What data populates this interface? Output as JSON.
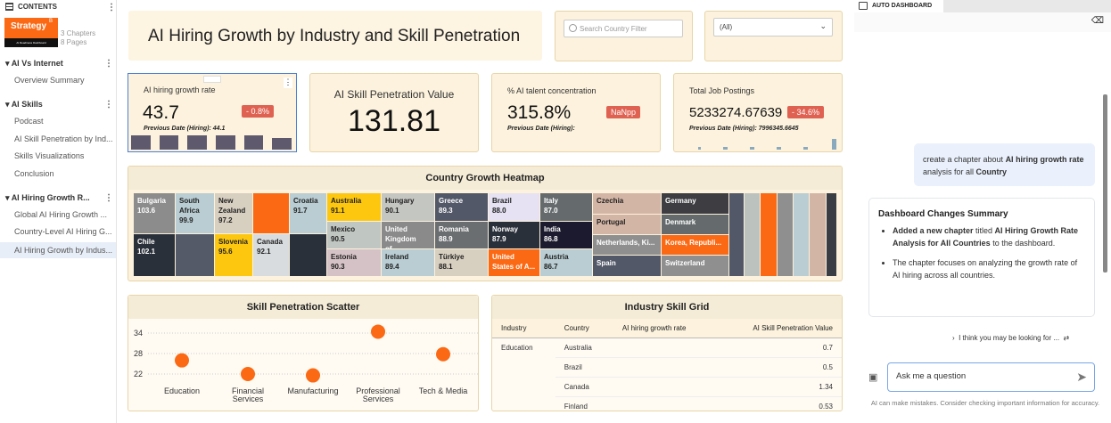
{
  "sidebar": {
    "header": "CONTENTS",
    "logo_text": "Strategy",
    "logo_sup": "B",
    "logo_sub": "AI Readiness Dashboard",
    "chapters_count": "3 Chapters",
    "pages_count": "8 Pages",
    "chapters": [
      {
        "title": "AI Vs Internet",
        "pages": [
          "Overview Summary"
        ]
      },
      {
        "title": "AI Skills",
        "pages": [
          "Podcast",
          "AI Skill Penetration by Ind...",
          "Skills Visualizations",
          "Conclusion"
        ]
      },
      {
        "title": "AI Hiring Growth R...",
        "pages": [
          "Global AI Hiring Growth ...",
          "Country-Level AI Hiring G...",
          "AI Hiring Growth by Indus..."
        ]
      }
    ],
    "selected_page": "AI Hiring Growth by Indus..."
  },
  "header": {
    "title": "AI Hiring Growth by Industry and Skill Penetration",
    "search_placeholder": "Search Country Filter",
    "filter_value": "(All)"
  },
  "kpis": [
    {
      "label": "AI hiring growth rate",
      "value": "43.7",
      "badge": "- 0.8%",
      "previous": "Previous Date (Hiring): 44.1"
    },
    {
      "label": "AI Skill Penetration Value",
      "value": "131.81"
    },
    {
      "label": "% AI talent concentration",
      "value": "315.8%",
      "badge": "NaNpp",
      "previous": "Previous Date (Hiring):"
    },
    {
      "label": "Total Job Postings",
      "value": "5233274.67639",
      "badge": "- 34.6%",
      "previous": "Previous Date (Hiring): 7996345.6645"
    }
  ],
  "heatmap": {
    "title": "Country Growth Heatmap",
    "cells": [
      {
        "name": "Bulgaria",
        "value": "103.6",
        "color": "#8c8c8c"
      },
      {
        "name": "Chile",
        "value": "102.1",
        "color": "#2a303a"
      },
      {
        "name": "South Africa",
        "value": "99.9",
        "color": "#b9cdd3"
      },
      {
        "name": "",
        "value": "",
        "color": "#545a68"
      },
      {
        "name": "New Zealand",
        "value": "97.2",
        "color": "#d7cfc0"
      },
      {
        "name": "Slovenia",
        "value": "95.6",
        "color": "#fdc70f"
      },
      {
        "name": "",
        "value": "",
        "color": "#fb6914"
      },
      {
        "name": "Canada",
        "value": "92.1",
        "color": "#d8dcdf"
      },
      {
        "name": "Croatia",
        "value": "91.7",
        "color": "#b9cdd3"
      },
      {
        "name": "",
        "value": "",
        "color": "#2a303a"
      },
      {
        "name": "Australia",
        "value": "91.1",
        "color": "#fdc70f"
      },
      {
        "name": "Mexico",
        "value": "90.5",
        "color": "#c0c6c2"
      },
      {
        "name": "Estonia",
        "value": "90.3",
        "color": "#d5c2c6"
      },
      {
        "name": "Hungary",
        "value": "90.1",
        "color": "#c4c6c2"
      },
      {
        "name": "United Kingdom of...",
        "value": "",
        "color": "#8a8a8a"
      },
      {
        "name": "Ireland",
        "value": "89.4",
        "color": "#b9cdd3"
      },
      {
        "name": "Greece",
        "value": "89.3",
        "color": "#535868"
      },
      {
        "name": "Romania",
        "value": "88.9",
        "color": "#6b6e71"
      },
      {
        "name": "Türkiye",
        "value": "88.1",
        "color": "#d7cfc0"
      },
      {
        "name": "Brazil",
        "value": "88.0",
        "color": "#e6e2f3"
      },
      {
        "name": "Norway",
        "value": "87.9",
        "color": "#2a303a"
      },
      {
        "name": "United States of A...",
        "value": "",
        "color": "#fb6914"
      },
      {
        "name": "Italy",
        "value": "87.0",
        "color": "#656b6d"
      },
      {
        "name": "India",
        "value": "86.8",
        "color": "#1c1a2e"
      },
      {
        "name": "Austria",
        "value": "86.7",
        "color": "#b9cdd3"
      },
      {
        "name": "Czechia",
        "value": "",
        "color": "#d3b5a5"
      },
      {
        "name": "Portugal",
        "value": "",
        "color": "#d3b5a5"
      },
      {
        "name": "Netherlands, Ki...",
        "value": "",
        "color": "#8f8f8f"
      },
      {
        "name": "Spain",
        "value": "",
        "color": "#535868"
      },
      {
        "name": "Germany",
        "value": "",
        "color": "#3d3d42"
      },
      {
        "name": "Denmark",
        "value": "",
        "color": "#656b6d"
      },
      {
        "name": "Korea, Republi...",
        "value": "",
        "color": "#fb6914"
      },
      {
        "name": "Switzerland",
        "value": "",
        "color": "#8f8f8f"
      },
      {
        "name": "",
        "value": "",
        "color": "#535868"
      },
      {
        "name": "",
        "value": "",
        "color": "#bcc3bf"
      },
      {
        "name": "",
        "value": "",
        "color": "#fb6914"
      },
      {
        "name": "",
        "value": "",
        "color": "#8f8f8f"
      },
      {
        "name": "",
        "value": "",
        "color": "#b9cdd3"
      },
      {
        "name": "",
        "value": "",
        "color": "#d3b5a5"
      },
      {
        "name": "",
        "value": "",
        "color": "#3b3d45"
      }
    ]
  },
  "chart_data": {
    "type": "scatter",
    "title": "Skill Penetration Scatter",
    "categories": [
      "Education",
      "Financial Services",
      "Manufacturing",
      "Professional Services",
      "Tech & Media"
    ],
    "values": [
      26,
      22,
      21.6,
      34.4,
      27.8
    ],
    "yticks": [
      22,
      28,
      34
    ],
    "ylim": [
      19,
      36
    ],
    "grid": true,
    "color": "#fb6914"
  },
  "grid": {
    "title": "Industry Skill Grid",
    "columns": [
      "Industry",
      "Country",
      "AI hiring growth rate",
      "AI Skill Penetration Value"
    ],
    "rows": [
      [
        "Education",
        "Australia",
        "",
        "0.7"
      ],
      [
        "",
        "Brazil",
        "",
        "0.5"
      ],
      [
        "",
        "Canada",
        "",
        "1.34"
      ],
      [
        "",
        "Finland",
        "",
        "0.53"
      ]
    ]
  },
  "assistant": {
    "tab": "AUTO DASHBOARD",
    "user_msg": [
      {
        "t": "create a chapter about "
      },
      {
        "t": "AI hiring growth rate",
        "b": true
      },
      {
        "t": " analysis for all "
      },
      {
        "t": "Country",
        "b": true
      }
    ],
    "summary_title": "Dashboard Changes Summary",
    "summary_items": [
      [
        {
          "t": "Added a new chapter",
          "b": true
        },
        {
          "t": " titled "
        },
        {
          "t": "AI Hiring Growth Rate Analysis for All Countries",
          "b": true
        },
        {
          "t": " to the dashboard."
        }
      ],
      [
        {
          "t": "The chapter focuses on analyzing the growth rate of AI hiring across all countries."
        }
      ]
    ],
    "suggestion": "I think you may be looking for ...",
    "input_placeholder": "Ask me a question",
    "disclaimer": "AI can make mistakes. Consider checking important information for accuracy."
  }
}
